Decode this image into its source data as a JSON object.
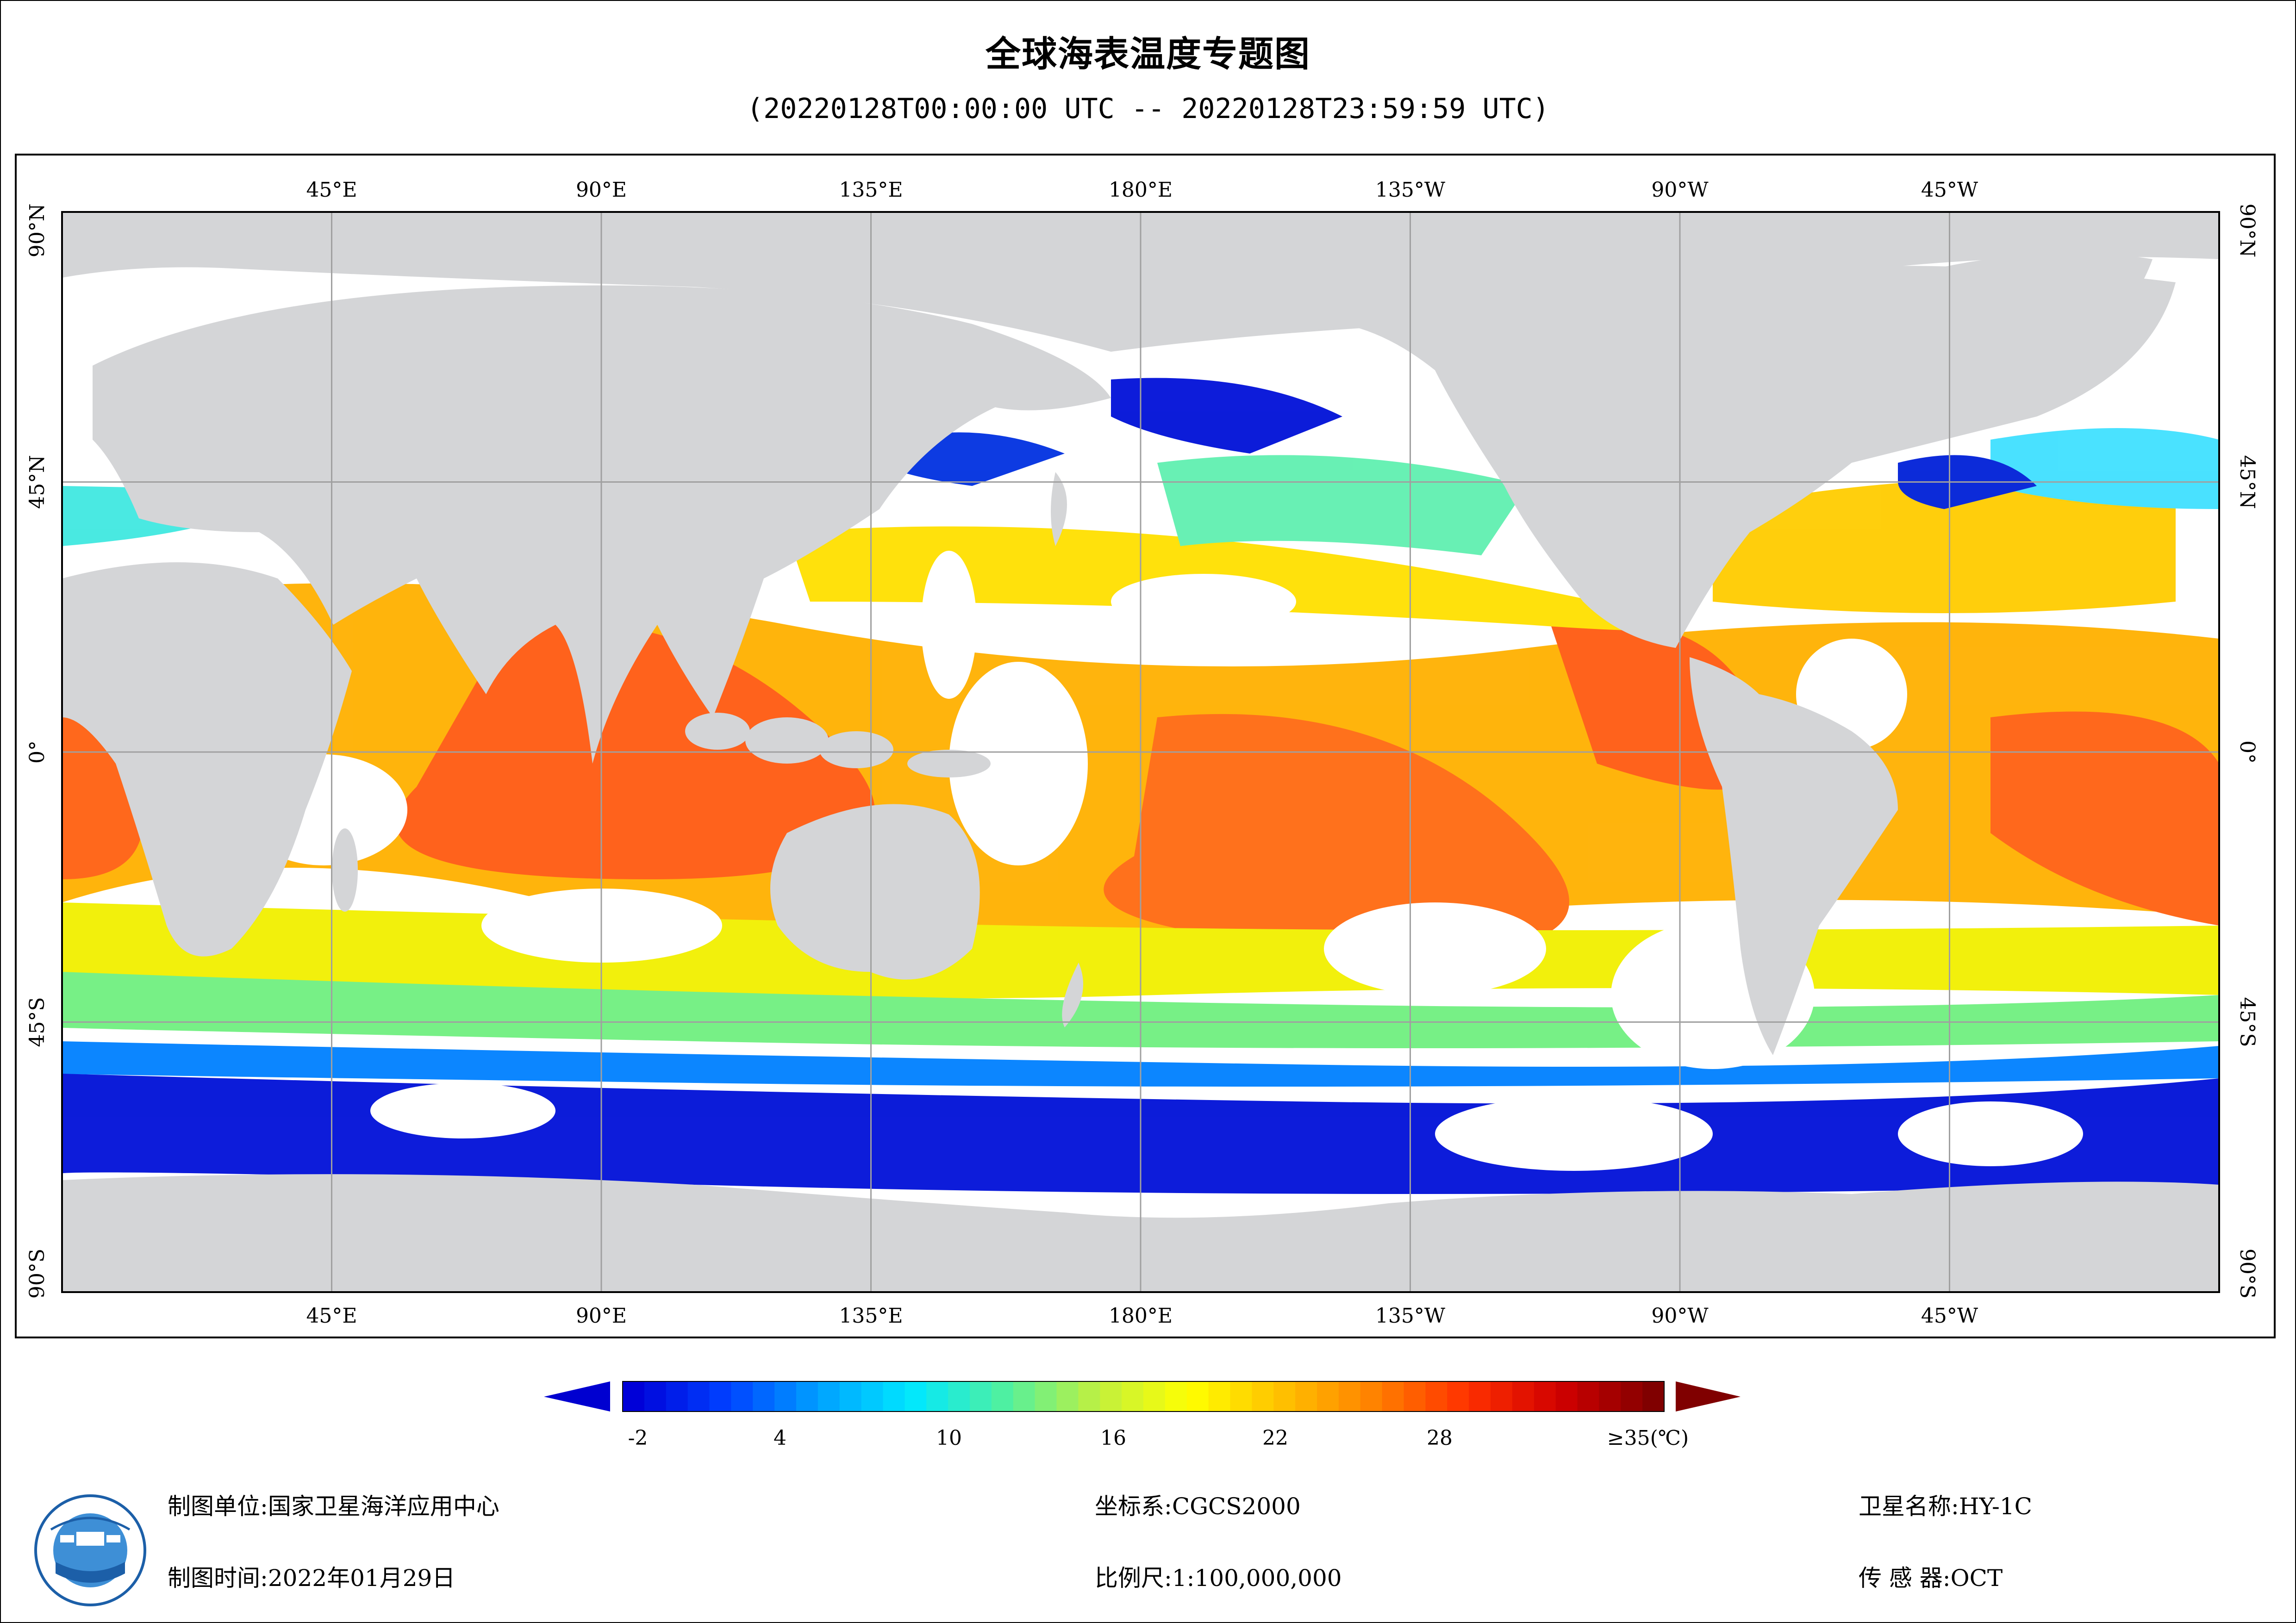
{
  "header": {
    "title": "全球海表温度专题图",
    "subtitle": "(20220128T00:00:00 UTC -- 20220128T23:59:59 UTC)"
  },
  "map": {
    "lon_labels": [
      {
        "lon": 45,
        "text": "45°E"
      },
      {
        "lon": 90,
        "text": "90°E"
      },
      {
        "lon": 135,
        "text": "135°E"
      },
      {
        "lon": 180,
        "text": "180°E"
      },
      {
        "lon": 225,
        "text": "135°W"
      },
      {
        "lon": 270,
        "text": "90°W"
      },
      {
        "lon": 315,
        "text": "45°W"
      }
    ],
    "lat_labels": [
      {
        "lat": 90,
        "text": "90°N"
      },
      {
        "lat": 45,
        "text": "45°N"
      },
      {
        "lat": 0,
        "text": "0°"
      },
      {
        "lat": -45,
        "text": "45°S"
      },
      {
        "lat": -90,
        "text": "90°S"
      }
    ],
    "land_color": "#d4d5d7",
    "graticule_color": "#a0a0a0"
  },
  "legend": {
    "ticks": [
      "-2",
      "4",
      "10",
      "16",
      "22",
      "28",
      "≥35(℃)"
    ],
    "min_value": -2,
    "max_value": 35,
    "colors": [
      "#0000d8",
      "#0040ff",
      "#00a0ff",
      "#00e8ff",
      "#50f0a0",
      "#c0f040",
      "#ffff00",
      "#ffc000",
      "#ff8000",
      "#ff3000",
      "#d00000",
      "#800000"
    ],
    "left_arrow_color": "#0000d0",
    "right_arrow_color": "#800000"
  },
  "footer": {
    "org_label": "制图单位:国家卫星海洋应用中心",
    "time_label": "制图时间:2022年01月29日",
    "crs_label": "坐标系:CGCS2000",
    "scale_label": "比例尺:1:100,000,000",
    "satellite_label": "卫星名称:HY-1C",
    "sensor_label": "传 感 器:OCT"
  }
}
